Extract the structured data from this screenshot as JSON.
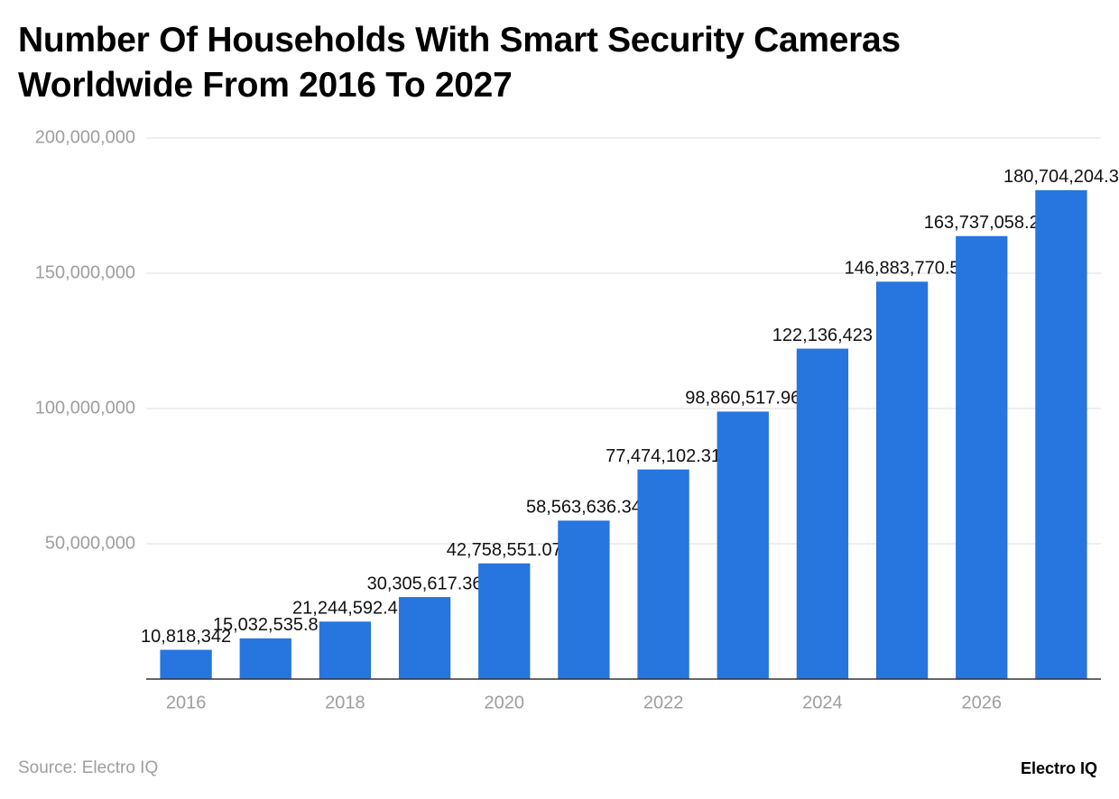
{
  "chart_data": {
    "type": "bar",
    "title": "Number Of Households With Smart Security Cameras Worldwide From 2016 To 2027",
    "categories": [
      "2016",
      null,
      "2018",
      null,
      "2020",
      null,
      "2022",
      null,
      "2024",
      null,
      "2026",
      null
    ],
    "values": [
      10818342,
      15032535.8,
      21244592.4,
      30305617.36,
      42758551.07,
      58563636.34,
      77474102.31,
      98860517.96,
      122136423,
      146883770.5,
      163737058.2,
      180704204.3
    ],
    "value_labels": [
      "10,818,342",
      "15,032,535.8",
      "21,244,592.4",
      "30,305,617.36",
      "42,758,551.07",
      "58,563,636.34",
      "77,474,102.31",
      "98,860,517.96",
      "122,136,423",
      "146,883,770.5",
      "163,737,058.2",
      "180,704,204.3"
    ],
    "color": "#2775de",
    "ylim": [
      0,
      200000000
    ],
    "yticks": [
      {
        "value": 50000000,
        "label": "50,000,000"
      },
      {
        "value": 100000000,
        "label": "100,000,000"
      },
      {
        "value": 150000000,
        "label": "150,000,000"
      },
      {
        "value": 200000000,
        "label": "200,000,000"
      }
    ],
    "grid": true,
    "source": "Source: Electro IQ",
    "brand": "Electro IQ"
  }
}
